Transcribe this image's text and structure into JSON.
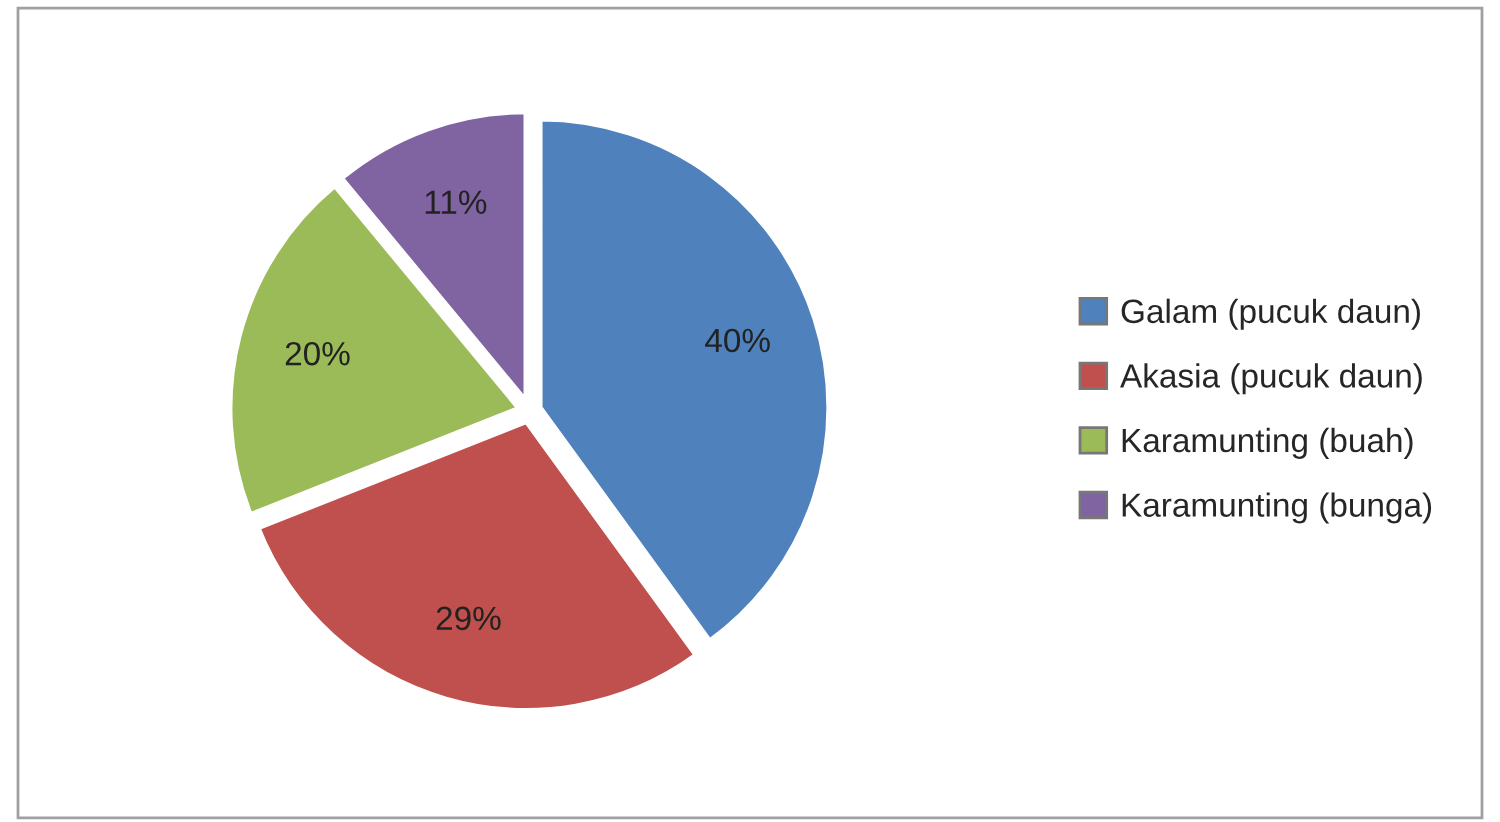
{
  "chart_data": {
    "type": "pie",
    "categories": [
      "Galam (pucuk daun)",
      "Akasia (pucuk daun)",
      "Karamunting (buah)",
      "Karamunting (bunga)"
    ],
    "values": [
      40,
      29,
      20,
      11
    ],
    "colors": [
      "#4f81bd",
      "#c0504d",
      "#9bbb59",
      "#8064a2"
    ],
    "value_labels": [
      "40%",
      "29%",
      "20%",
      "11%"
    ],
    "legend": "right"
  }
}
